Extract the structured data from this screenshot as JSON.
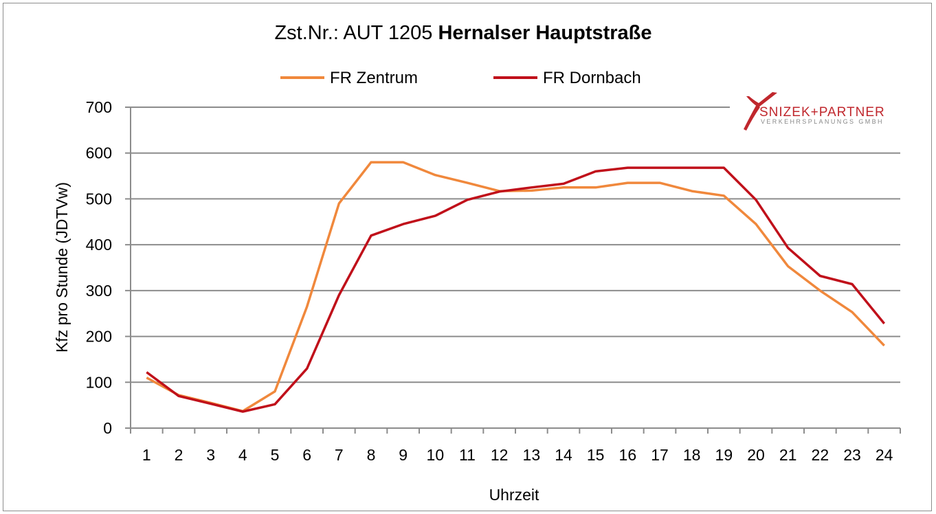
{
  "chart_data": {
    "type": "line",
    "title_prefix": "Zst.Nr.: AUT 1205 ",
    "title_bold": "Hernalser Hauptstraße",
    "xlabel": "Uhrzeit",
    "ylabel": "Kfz pro Stunde (JDTVw)",
    "ylim": [
      0,
      700
    ],
    "yticks": [
      0,
      100,
      200,
      300,
      400,
      500,
      600,
      700
    ],
    "grid": true,
    "legend_position": "top",
    "categories": [
      "1",
      "2",
      "3",
      "4",
      "5",
      "6",
      "7",
      "8",
      "9",
      "10",
      "11",
      "12",
      "13",
      "14",
      "15",
      "16",
      "17",
      "18",
      "19",
      "20",
      "21",
      "22",
      "23",
      "24"
    ],
    "series": [
      {
        "name": "FR Zentrum",
        "color": "#f0883c",
        "values": [
          110,
          72,
          55,
          37,
          80,
          265,
          490,
          580,
          580,
          552,
          535,
          517,
          518,
          525,
          525,
          535,
          535,
          517,
          507,
          445,
          353,
          300,
          253,
          180
        ]
      },
      {
        "name": "FR Dornbach",
        "color": "#c0101a",
        "values": [
          122,
          70,
          53,
          36,
          52,
          130,
          290,
          420,
          445,
          463,
          498,
          516,
          525,
          533,
          560,
          568,
          568,
          568,
          568,
          498,
          393,
          332,
          314,
          228
        ]
      }
    ]
  },
  "logo": {
    "name": "SNIZEK+PARTNER",
    "subtitle": "VERKEHRSPLANUNGS GMBH"
  }
}
